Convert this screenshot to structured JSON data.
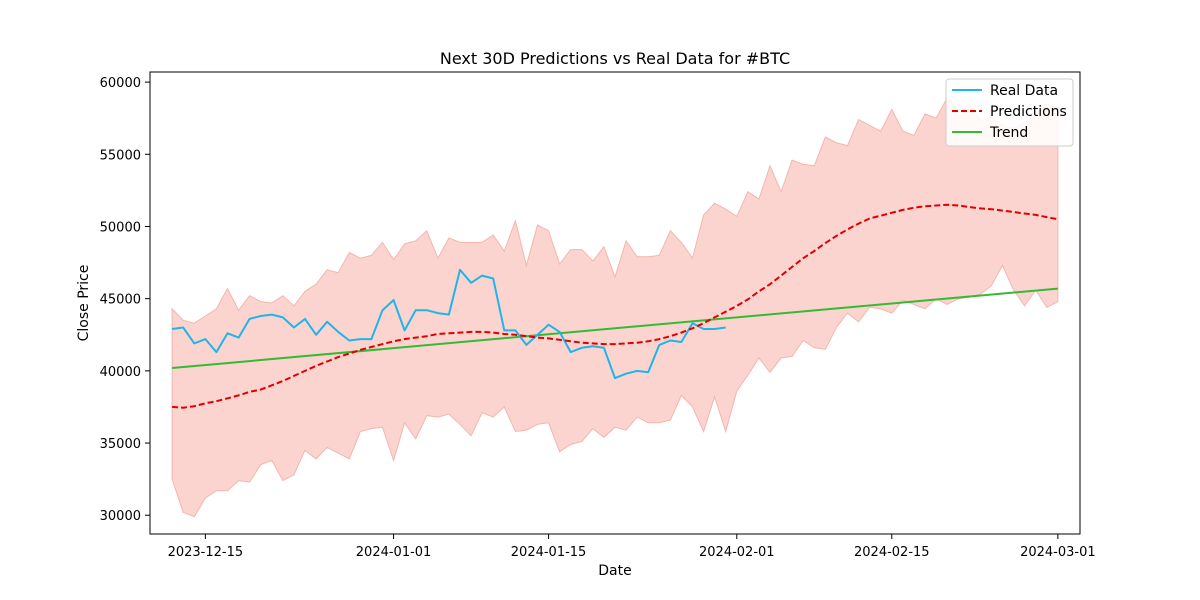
{
  "chart_data": {
    "type": "line",
    "title": "Next 30D Predictions vs Real Data for #BTC",
    "xlabel": "Date",
    "ylabel": "Close Price",
    "x_range": [
      "2023-12-10",
      "2024-03-03"
    ],
    "ylim": [
      28700,
      60700
    ],
    "x_ticks": [
      "2023-12-15",
      "2024-01-01",
      "2024-01-15",
      "2024-02-01",
      "2024-02-15",
      "2024-03-01"
    ],
    "y_ticks": [
      30000,
      35000,
      40000,
      45000,
      50000,
      55000,
      60000
    ],
    "grid": false,
    "legend": {
      "position": "upper-right",
      "entries": [
        "Real Data",
        "Predictions",
        "Trend"
      ]
    },
    "colors": {
      "real": "#1fb5ea",
      "pred": "#e00000",
      "trend": "#33bb33",
      "band": "#fcd4cf",
      "band_edge": "#f2b6ae"
    },
    "band": {
      "x": [
        "2023-12-12",
        "2023-12-13",
        "2023-12-14",
        "2023-12-15",
        "2023-12-16",
        "2023-12-17",
        "2023-12-18",
        "2023-12-19",
        "2023-12-20",
        "2023-12-21",
        "2023-12-22",
        "2023-12-23",
        "2023-12-24",
        "2023-12-25",
        "2023-12-26",
        "2023-12-27",
        "2023-12-28",
        "2023-12-29",
        "2023-12-30",
        "2023-12-31",
        "2024-01-01",
        "2024-01-02",
        "2024-01-03",
        "2024-01-04",
        "2024-01-05",
        "2024-01-06",
        "2024-01-07",
        "2024-01-08",
        "2024-01-09",
        "2024-01-10",
        "2024-01-11",
        "2024-01-12",
        "2024-01-13",
        "2024-01-14",
        "2024-01-15",
        "2024-01-16",
        "2024-01-17",
        "2024-01-18",
        "2024-01-19",
        "2024-01-20",
        "2024-01-21",
        "2024-01-22",
        "2024-01-23",
        "2024-01-24",
        "2024-01-25",
        "2024-01-26",
        "2024-01-27",
        "2024-01-28",
        "2024-01-29",
        "2024-01-30",
        "2024-01-31",
        "2024-02-01",
        "2024-02-02",
        "2024-02-03",
        "2024-02-04",
        "2024-02-05",
        "2024-02-06",
        "2024-02-07",
        "2024-02-08",
        "2024-02-09",
        "2024-02-10",
        "2024-02-11",
        "2024-02-12",
        "2024-02-13",
        "2024-02-14",
        "2024-02-15",
        "2024-02-16",
        "2024-02-17",
        "2024-02-18",
        "2024-02-19",
        "2024-02-20",
        "2024-02-21",
        "2024-02-22",
        "2024-02-23",
        "2024-02-24",
        "2024-02-25",
        "2024-02-26",
        "2024-02-27",
        "2024-02-28",
        "2024-02-29",
        "2024-03-01"
      ],
      "upper": [
        44300,
        43500,
        43300,
        43800,
        44300,
        45700,
        44200,
        45200,
        44800,
        44700,
        45200,
        44500,
        45500,
        46000,
        47000,
        46800,
        48200,
        47800,
        48000,
        48900,
        47700,
        48800,
        49000,
        49700,
        47800,
        49200,
        48900,
        48900,
        48900,
        49400,
        48300,
        50400,
        47300,
        50100,
        49700,
        47400,
        48400,
        48400,
        47600,
        48600,
        46500,
        49000,
        47900,
        47900,
        48000,
        49700,
        48900,
        47800,
        50800,
        51600,
        51200,
        50700,
        52400,
        51900,
        54200,
        52400,
        54600,
        54300,
        54200,
        56200,
        55800,
        55600,
        57400,
        57000,
        56600,
        58100,
        56600,
        56300,
        57800,
        57500,
        58900,
        57900,
        58500,
        57300,
        57600,
        57000,
        56800,
        57200,
        57700,
        58500,
        58100
      ],
      "lower": [
        32500,
        30200,
        29900,
        31200,
        31700,
        31700,
        32400,
        32300,
        33500,
        33800,
        32400,
        32800,
        34500,
        33900,
        34700,
        34300,
        33900,
        35800,
        36000,
        36100,
        33800,
        36400,
        35300,
        36900,
        36800,
        37000,
        36300,
        35500,
        37100,
        36800,
        37500,
        35800,
        35900,
        36300,
        36400,
        34400,
        34900,
        35100,
        36000,
        35400,
        36100,
        35900,
        36800,
        36400,
        36400,
        36600,
        38300,
        37500,
        35800,
        38200,
        35800,
        38600,
        39700,
        40900,
        39900,
        40900,
        41000,
        42100,
        41600,
        41500,
        43000,
        44000,
        43400,
        44400,
        44300,
        44000,
        44900,
        44600,
        44300,
        45000,
        44600,
        45000,
        45100,
        45300,
        45900,
        47300,
        45600,
        44500,
        45600,
        44400,
        44800
      ]
    },
    "series": [
      {
        "name": "Real Data",
        "x": [
          "2023-12-12",
          "2023-12-13",
          "2023-12-14",
          "2023-12-15",
          "2023-12-16",
          "2023-12-17",
          "2023-12-18",
          "2023-12-19",
          "2023-12-20",
          "2023-12-21",
          "2023-12-22",
          "2023-12-23",
          "2023-12-24",
          "2023-12-25",
          "2023-12-26",
          "2023-12-27",
          "2023-12-28",
          "2023-12-29",
          "2023-12-30",
          "2023-12-31",
          "2024-01-01",
          "2024-01-02",
          "2024-01-03",
          "2024-01-04",
          "2024-01-05",
          "2024-01-06",
          "2024-01-07",
          "2024-01-08",
          "2024-01-09",
          "2024-01-10",
          "2024-01-11",
          "2024-01-12",
          "2024-01-13",
          "2024-01-14",
          "2024-01-15",
          "2024-01-16",
          "2024-01-17",
          "2024-01-18",
          "2024-01-19",
          "2024-01-20",
          "2024-01-21",
          "2024-01-22",
          "2024-01-23",
          "2024-01-24",
          "2024-01-25",
          "2024-01-26",
          "2024-01-27",
          "2024-01-28",
          "2024-01-29",
          "2024-01-30",
          "2024-01-31"
        ],
        "values": [
          42900,
          43000,
          41900,
          42200,
          41300,
          42600,
          42300,
          43600,
          43800,
          43900,
          43700,
          43000,
          43600,
          42500,
          43400,
          42700,
          42100,
          42200,
          42200,
          44200,
          44900,
          42800,
          44200,
          44200,
          44000,
          43900,
          47000,
          46100,
          46600,
          46400,
          42800,
          42800,
          41800,
          42500,
          43200,
          42700,
          41300,
          41600,
          41700,
          41600,
          39500,
          39800,
          40000,
          39900,
          41800,
          42100,
          42000,
          43300,
          42900,
          42900,
          43000
        ]
      },
      {
        "name": "Predictions",
        "x": [
          "2023-12-12",
          "2023-12-13",
          "2023-12-14",
          "2023-12-15",
          "2023-12-16",
          "2023-12-17",
          "2023-12-18",
          "2023-12-19",
          "2023-12-20",
          "2023-12-21",
          "2023-12-22",
          "2023-12-23",
          "2023-12-24",
          "2023-12-25",
          "2023-12-26",
          "2023-12-27",
          "2023-12-28",
          "2023-12-29",
          "2023-12-30",
          "2023-12-31",
          "2024-01-01",
          "2024-01-02",
          "2024-01-03",
          "2024-01-04",
          "2024-01-05",
          "2024-01-06",
          "2024-01-07",
          "2024-01-08",
          "2024-01-09",
          "2024-01-10",
          "2024-01-11",
          "2024-01-12",
          "2024-01-13",
          "2024-01-14",
          "2024-01-15",
          "2024-01-16",
          "2024-01-17",
          "2024-01-18",
          "2024-01-19",
          "2024-01-20",
          "2024-01-21",
          "2024-01-22",
          "2024-01-23",
          "2024-01-24",
          "2024-01-25",
          "2024-01-26",
          "2024-01-27",
          "2024-01-28",
          "2024-01-29",
          "2024-01-30",
          "2024-01-31",
          "2024-02-01",
          "2024-02-02",
          "2024-02-03",
          "2024-02-04",
          "2024-02-05",
          "2024-02-06",
          "2024-02-07",
          "2024-02-08",
          "2024-02-09",
          "2024-02-10",
          "2024-02-11",
          "2024-02-12",
          "2024-02-13",
          "2024-02-14",
          "2024-02-15",
          "2024-02-16",
          "2024-02-17",
          "2024-02-18",
          "2024-02-19",
          "2024-02-20",
          "2024-02-21",
          "2024-02-22",
          "2024-02-23",
          "2024-02-24",
          "2024-02-25",
          "2024-02-26",
          "2024-02-27",
          "2024-02-28",
          "2024-02-29",
          "2024-03-01"
        ],
        "values": [
          37500,
          37450,
          37550,
          37750,
          37900,
          38100,
          38300,
          38550,
          38700,
          39000,
          39300,
          39650,
          40000,
          40350,
          40650,
          40950,
          41200,
          41450,
          41650,
          41850,
          42050,
          42200,
          42300,
          42400,
          42550,
          42600,
          42650,
          42700,
          42700,
          42650,
          42550,
          42500,
          42400,
          42300,
          42250,
          42150,
          42050,
          41950,
          41900,
          41850,
          41850,
          41900,
          41950,
          42050,
          42200,
          42400,
          42650,
          42950,
          43300,
          43700,
          44100,
          44500,
          44950,
          45500,
          46000,
          46600,
          47200,
          47800,
          48300,
          48850,
          49350,
          49800,
          50200,
          50550,
          50750,
          50950,
          51150,
          51300,
          51400,
          51450,
          51500,
          51450,
          51350,
          51250,
          51200,
          51100,
          51000,
          50900,
          50800,
          50650,
          50500
        ]
      },
      {
        "name": "Trend",
        "x": [
          "2023-12-12",
          "2024-03-01"
        ],
        "values": [
          40200,
          45700
        ]
      }
    ]
  }
}
